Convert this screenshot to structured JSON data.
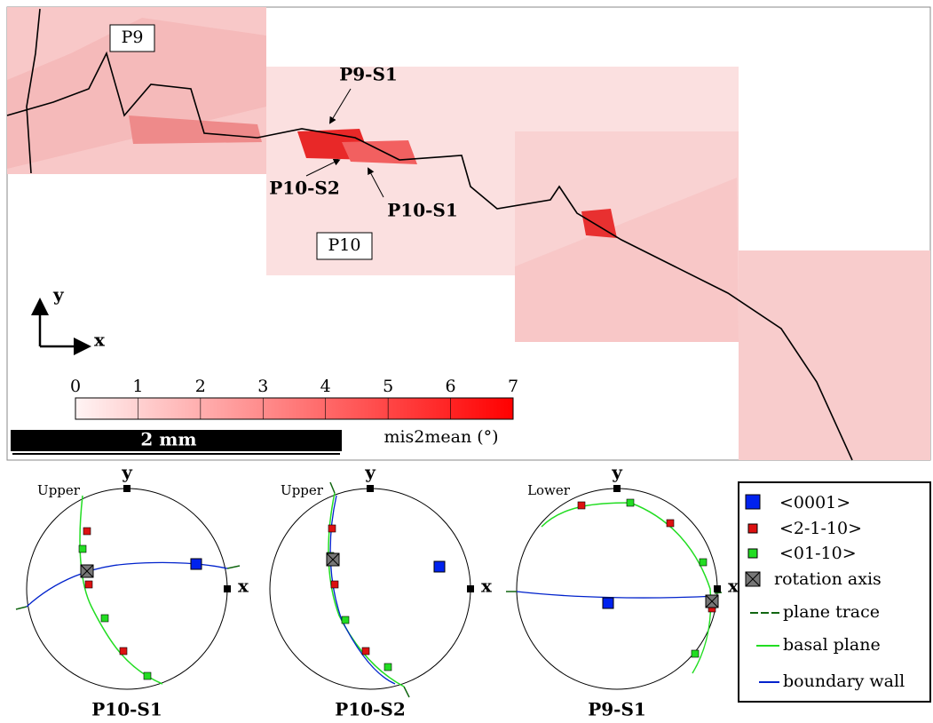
{
  "map": {
    "grain_labels": [
      "P9",
      "P10"
    ],
    "annotations": [
      "P9-S1",
      "P10-S2",
      "P10-S1"
    ],
    "axes": [
      "y",
      "x"
    ]
  },
  "colorbar": {
    "ticks": [
      0,
      1,
      2,
      3,
      4,
      5,
      6,
      7
    ],
    "label": "mis2mean (°)"
  },
  "scale_bar": "2 mm",
  "pole_figures": [
    {
      "title": "P10-S1",
      "hemisphere": "Upper",
      "axes": [
        "y",
        "x"
      ]
    },
    {
      "title": "P10-S2",
      "hemisphere": "Upper",
      "axes": [
        "y",
        "x"
      ]
    },
    {
      "title": "P9-S1",
      "hemisphere": "Lower",
      "axes": [
        "y",
        "x"
      ]
    }
  ],
  "legend": [
    "<0001>",
    "<2-1-10>",
    "<01-10>",
    "rotation axis",
    "plane trace",
    "basal plane",
    "boundary wall"
  ]
}
